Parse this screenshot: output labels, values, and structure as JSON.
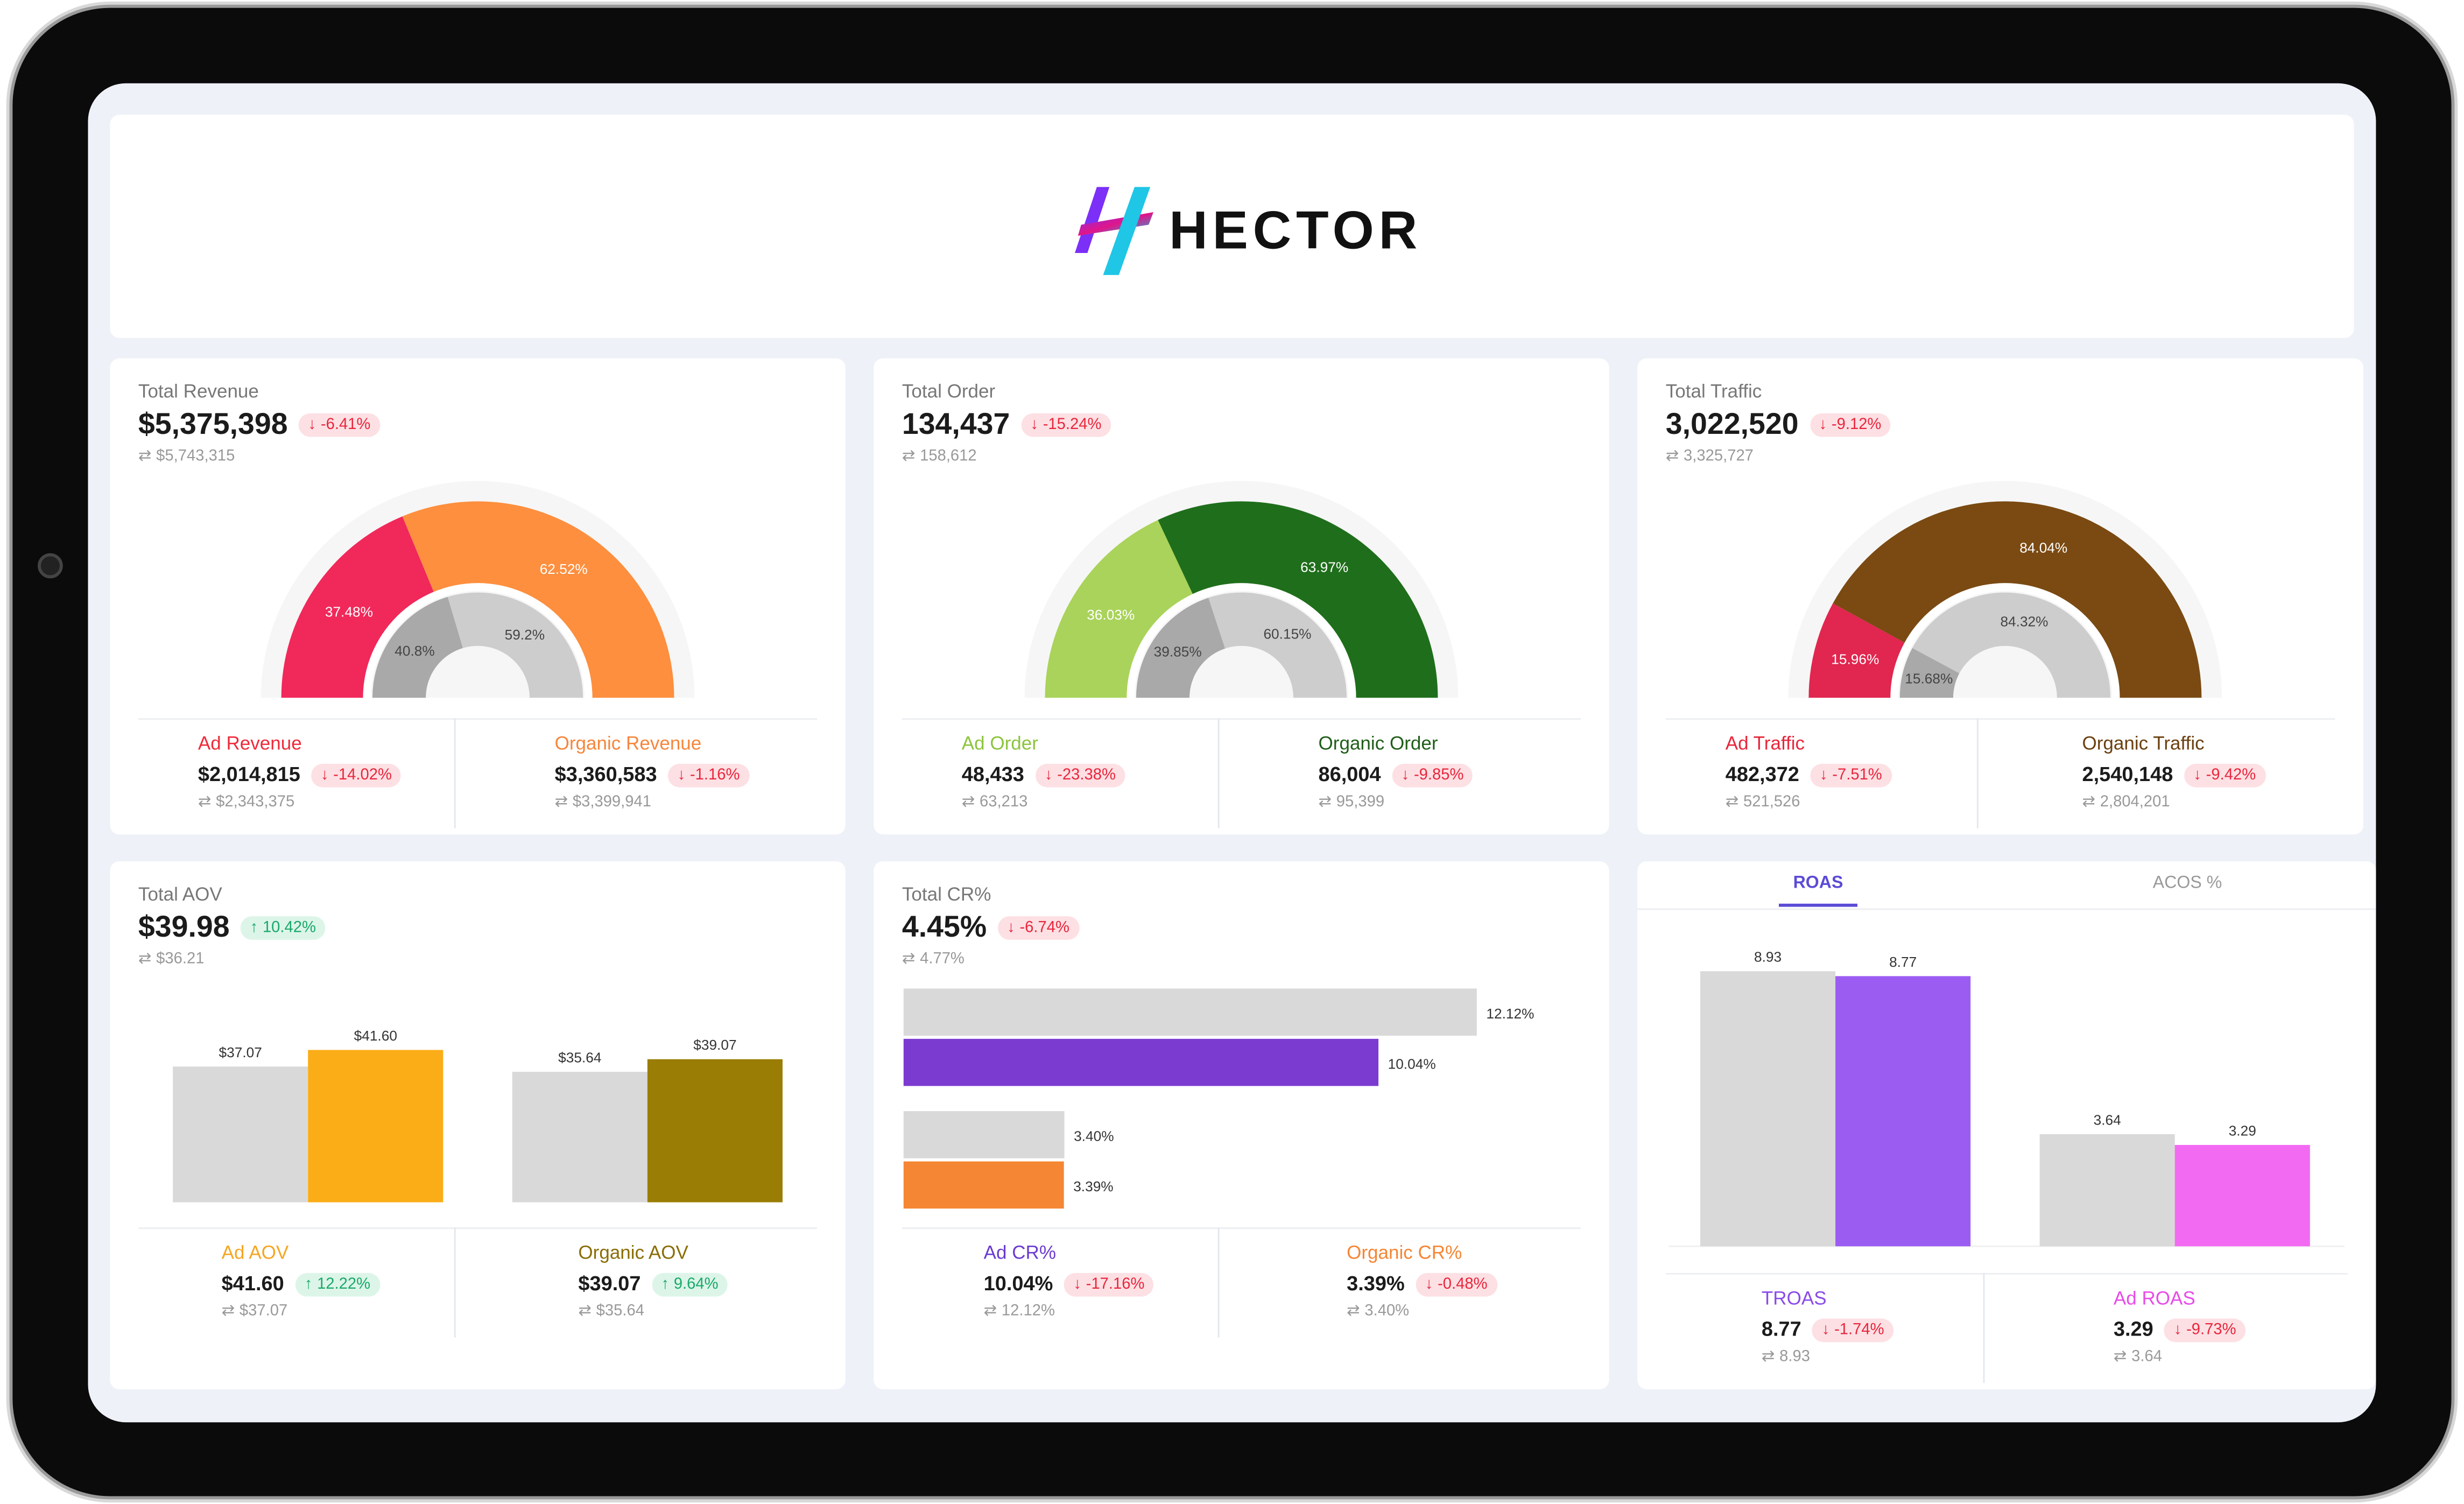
{
  "brand": {
    "name": "HECTOR",
    "colors": [
      "#7b2ff7",
      "#e0158a",
      "#00c2e0"
    ]
  },
  "gauges": [
    {
      "title": "Total Revenue",
      "value": "$5,375,398",
      "change": "-6.41%",
      "dir": "down",
      "prev": "$5,743,315",
      "outer": [
        {
          "label": "37.48%",
          "value": 37.48,
          "color": "#f1285a"
        },
        {
          "label": "62.52%",
          "value": 62.52,
          "color": "#fd8f3e"
        }
      ],
      "inner": [
        {
          "label": "40.8%",
          "value": 40.8,
          "color": "#a9a9a9"
        },
        {
          "label": "59.2%",
          "value": 59.2,
          "color": "#cdcdcd"
        }
      ],
      "stats": [
        {
          "label": "Ad Revenue",
          "color": "#ef2a3b",
          "value": "$2,014,815",
          "change": "-14.02%",
          "dir": "down",
          "prev": "$2,343,375"
        },
        {
          "label": "Organic Revenue",
          "color": "#f6863c",
          "value": "$3,360,583",
          "change": "-1.16%",
          "dir": "down",
          "prev": "$3,399,941"
        }
      ]
    },
    {
      "title": "Total Order",
      "value": "134,437",
      "change": "-15.24%",
      "dir": "down",
      "prev": "158,612",
      "outer": [
        {
          "label": "36.03%",
          "value": 36.03,
          "color": "#a9d35a"
        },
        {
          "label": "63.97%",
          "value": 63.97,
          "color": "#1f6e1b"
        }
      ],
      "inner": [
        {
          "label": "39.85%",
          "value": 39.85,
          "color": "#a9a9a9"
        },
        {
          "label": "60.15%",
          "value": 60.15,
          "color": "#cdcdcd"
        }
      ],
      "stats": [
        {
          "label": "Ad Order",
          "color": "#8cc43c",
          "value": "48,433",
          "change": "-23.38%",
          "dir": "down",
          "prev": "63,213"
        },
        {
          "label": "Organic Order",
          "color": "#1f5e18",
          "value": "86,004",
          "change": "-9.85%",
          "dir": "down",
          "prev": "95,399"
        }
      ]
    },
    {
      "title": "Total Traffic",
      "value": "3,022,520",
      "change": "-9.12%",
      "dir": "down",
      "prev": "3,325,727",
      "outer": [
        {
          "label": "15.96%",
          "value": 15.96,
          "color": "#e1264f"
        },
        {
          "label": "84.04%",
          "value": 84.04,
          "color": "#7a4a12"
        }
      ],
      "inner": [
        {
          "label": "15.68%",
          "value": 15.68,
          "color": "#a9a9a9"
        },
        {
          "label": "84.32%",
          "value": 84.32,
          "color": "#cdcdcd"
        }
      ],
      "stats": [
        {
          "label": "Ad Traffic",
          "color": "#e8263c",
          "value": "482,372",
          "change": "-7.51%",
          "dir": "down",
          "prev": "521,526"
        },
        {
          "label": "Organic Traffic",
          "color": "#6b4010",
          "value": "2,540,148",
          "change": "-9.42%",
          "dir": "down",
          "prev": "2,804,201"
        }
      ]
    }
  ],
  "aov": {
    "title": "Total AOV",
    "value": "$39.98",
    "change": "10.42%",
    "dir": "up",
    "prev": "$36.21",
    "chart_data": {
      "type": "bar",
      "categories": [
        "Ad AOV",
        "Organic AOV"
      ],
      "series": [
        {
          "values": [
            37.07,
            35.64
          ],
          "labels": [
            "$37.07",
            "$35.64"
          ],
          "colors": [
            "#d9d9d9",
            "#d9d9d9"
          ]
        },
        {
          "values": [
            41.6,
            39.07
          ],
          "labels": [
            "$41.60",
            "$39.07"
          ],
          "colors": [
            "#fbad17",
            "#9a7d05"
          ]
        }
      ]
    },
    "stats": [
      {
        "label": "Ad AOV",
        "color": "#f5a623",
        "value": "$41.60",
        "change": "12.22%",
        "dir": "up",
        "prev": "$37.07"
      },
      {
        "label": "Organic AOV",
        "color": "#8a6d05",
        "value": "$39.07",
        "change": "9.64%",
        "dir": "up",
        "prev": "$35.64"
      }
    ]
  },
  "cr": {
    "title": "Total CR%",
    "value": "4.45%",
    "change": "-6.74%",
    "dir": "down",
    "prev": "4.77%",
    "chart_data": {
      "type": "bar",
      "orientation": "horizontal",
      "categories": [
        "Ad CR%",
        "Organic CR%"
      ],
      "series": [
        {
          "values": [
            12.12,
            3.4
          ],
          "labels": [
            "12.12%",
            "3.40%"
          ],
          "colors": [
            "#d9d9d9",
            "#d9d9d9"
          ]
        },
        {
          "values": [
            10.04,
            3.39
          ],
          "labels": [
            "10.04%",
            "3.39%"
          ],
          "colors": [
            "#7b3bd0",
            "#f58634"
          ]
        }
      ]
    },
    "stats": [
      {
        "label": "Ad CR%",
        "color": "#6a3bd0",
        "value": "10.04%",
        "change": "-17.16%",
        "dir": "down",
        "prev": "12.12%"
      },
      {
        "label": "Organic CR%",
        "color": "#f58634",
        "value": "3.39%",
        "change": "-0.48%",
        "dir": "down",
        "prev": "3.40%"
      }
    ]
  },
  "roas": {
    "tabs": [
      {
        "label": "ROAS",
        "active": true
      },
      {
        "label": "ACOS %",
        "active": false
      }
    ],
    "chart_data": {
      "type": "bar",
      "categories": [
        "TROAS",
        "Ad ROAS"
      ],
      "series": [
        {
          "values": [
            8.93,
            3.64
          ],
          "labels": [
            "8.93",
            "3.64"
          ],
          "colors": [
            "#d9d9d9",
            "#d9d9d9"
          ]
        },
        {
          "values": [
            8.77,
            3.29
          ],
          "labels": [
            "8.77",
            "3.29"
          ],
          "colors": [
            "#9b5cf2",
            "#f36af2"
          ]
        }
      ]
    },
    "stats": [
      {
        "label": "TROAS",
        "color": "#8a4be8",
        "value": "8.77",
        "change": "-1.74%",
        "dir": "down",
        "prev": "8.93"
      },
      {
        "label": "Ad ROAS",
        "color": "#e84be8",
        "value": "3.29",
        "change": "-9.73%",
        "dir": "down",
        "prev": "3.64"
      }
    ]
  },
  "icons": {
    "down": "↓",
    "up": "↑",
    "prev": "⇄"
  }
}
